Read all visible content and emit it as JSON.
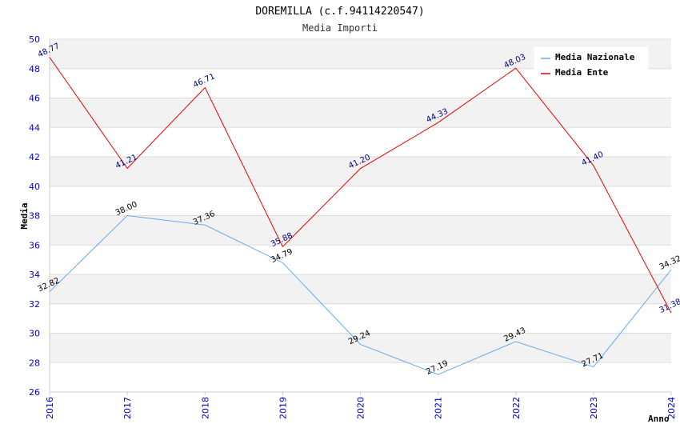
{
  "chart_data": {
    "type": "line",
    "title": "DOREMILLA (c.f.94114220547)",
    "subtitle": "Media Importi",
    "xlabel": "Anno",
    "ylabel": "Media",
    "ylim": [
      26,
      50
    ],
    "yticks": [
      26,
      28,
      30,
      32,
      34,
      36,
      38,
      40,
      42,
      44,
      46,
      48,
      50
    ],
    "categories": [
      "2016",
      "2017",
      "2018",
      "2019",
      "2020",
      "2021",
      "2022",
      "2023",
      "2024"
    ],
    "series": [
      {
        "name": "Media Nazionale",
        "color": "#66aaee",
        "values": [
          32.82,
          38.0,
          37.36,
          34.79,
          29.24,
          27.19,
          29.43,
          27.71,
          34.32
        ],
        "labels": [
          "32.82",
          "38.00",
          "37.36",
          "34.79",
          "29.24",
          "27.19",
          "29.43",
          "27.71",
          "34.32"
        ]
      },
      {
        "name": "Media Ente",
        "color": "#ee0000",
        "values": [
          48.77,
          41.21,
          46.71,
          35.88,
          41.2,
          44.33,
          48.03,
          41.4,
          31.38
        ],
        "labels": [
          "48.77",
          "41.21",
          "46.71",
          "35.88",
          "41.20",
          "44.33",
          "48.03",
          "41.40",
          "31.38"
        ]
      }
    ],
    "legend": "top-right",
    "grid": true
  }
}
